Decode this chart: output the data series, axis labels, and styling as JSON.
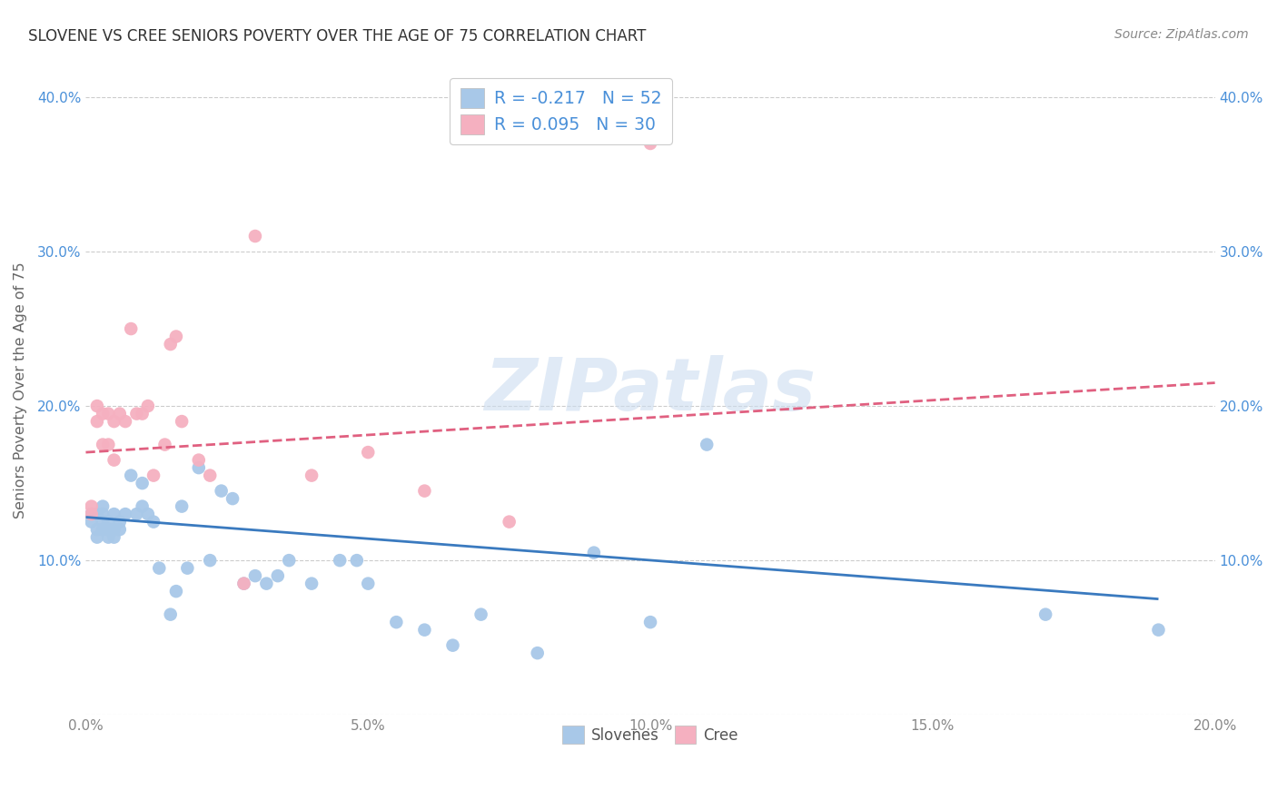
{
  "title": "SLOVENE VS CREE SENIORS POVERTY OVER THE AGE OF 75 CORRELATION CHART",
  "source": "Source: ZipAtlas.com",
  "ylabel": "Seniors Poverty Over the Age of 75",
  "xlim": [
    0.0,
    0.2
  ],
  "ylim": [
    0.0,
    0.42
  ],
  "x_ticks": [
    0.0,
    0.05,
    0.1,
    0.15,
    0.2
  ],
  "x_tick_labels": [
    "0.0%",
    "5.0%",
    "10.0%",
    "15.0%",
    "20.0%"
  ],
  "y_ticks": [
    0.0,
    0.1,
    0.2,
    0.3,
    0.4
  ],
  "y_tick_labels": [
    "",
    "10.0%",
    "20.0%",
    "30.0%",
    "40.0%"
  ],
  "slovene_R": -0.217,
  "slovene_N": 52,
  "cree_R": 0.095,
  "cree_N": 30,
  "slovene_color": "#a8c8e8",
  "cree_color": "#f5b0c0",
  "slovene_line_color": "#3a7abf",
  "cree_line_color": "#e06080",
  "watermark_color": "#ccddf0",
  "legend_text_color": "#4a90d9",
  "tick_color_y": "#4a90d9",
  "tick_color_x": "#888888",
  "grid_color": "#cccccc",
  "slovene_x": [
    0.001,
    0.001,
    0.002,
    0.002,
    0.002,
    0.003,
    0.003,
    0.003,
    0.003,
    0.004,
    0.004,
    0.004,
    0.005,
    0.005,
    0.005,
    0.006,
    0.006,
    0.007,
    0.008,
    0.009,
    0.01,
    0.01,
    0.011,
    0.012,
    0.013,
    0.015,
    0.016,
    0.017,
    0.018,
    0.02,
    0.022,
    0.024,
    0.026,
    0.028,
    0.03,
    0.032,
    0.034,
    0.036,
    0.04,
    0.045,
    0.048,
    0.05,
    0.055,
    0.06,
    0.065,
    0.07,
    0.08,
    0.09,
    0.1,
    0.11,
    0.17,
    0.19
  ],
  "slovene_y": [
    0.125,
    0.13,
    0.12,
    0.13,
    0.115,
    0.135,
    0.125,
    0.12,
    0.13,
    0.125,
    0.115,
    0.12,
    0.115,
    0.12,
    0.13,
    0.125,
    0.12,
    0.13,
    0.155,
    0.13,
    0.135,
    0.15,
    0.13,
    0.125,
    0.095,
    0.065,
    0.08,
    0.135,
    0.095,
    0.16,
    0.1,
    0.145,
    0.14,
    0.085,
    0.09,
    0.085,
    0.09,
    0.1,
    0.085,
    0.1,
    0.1,
    0.085,
    0.06,
    0.055,
    0.045,
    0.065,
    0.04,
    0.105,
    0.06,
    0.175,
    0.065,
    0.055
  ],
  "cree_x": [
    0.001,
    0.001,
    0.002,
    0.002,
    0.003,
    0.003,
    0.004,
    0.004,
    0.005,
    0.005,
    0.006,
    0.007,
    0.008,
    0.009,
    0.01,
    0.011,
    0.012,
    0.014,
    0.015,
    0.016,
    0.017,
    0.02,
    0.022,
    0.028,
    0.03,
    0.04,
    0.05,
    0.06,
    0.075,
    0.1
  ],
  "cree_y": [
    0.135,
    0.13,
    0.2,
    0.19,
    0.195,
    0.175,
    0.195,
    0.175,
    0.19,
    0.165,
    0.195,
    0.19,
    0.25,
    0.195,
    0.195,
    0.2,
    0.155,
    0.175,
    0.24,
    0.245,
    0.19,
    0.165,
    0.155,
    0.085,
    0.31,
    0.155,
    0.17,
    0.145,
    0.125,
    0.37
  ],
  "slovene_line_x": [
    0.0,
    0.19
  ],
  "slovene_line_y": [
    0.128,
    0.075
  ],
  "cree_line_x": [
    0.0,
    0.2
  ],
  "cree_line_y": [
    0.17,
    0.215
  ]
}
